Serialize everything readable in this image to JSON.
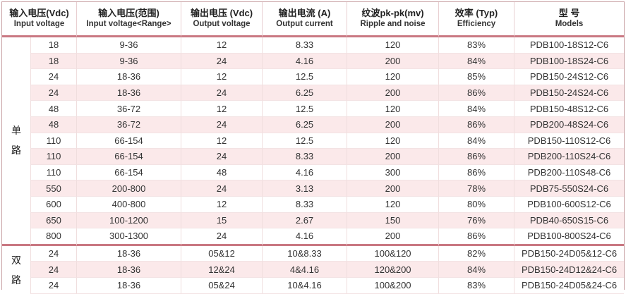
{
  "headers": [
    {
      "cn": "输入电压(Vdc)",
      "en": "Input voltage"
    },
    {
      "cn": "输入电压(范围)",
      "en": "Input voltage<Range>"
    },
    {
      "cn": "输出电压 (Vdc)",
      "en": "Output voltage"
    },
    {
      "cn": "输出电流 (A)",
      "en": "Output current"
    },
    {
      "cn": "纹波pk-pk(mv)",
      "en": "Ripple and noise"
    },
    {
      "cn": "效率 (Typ)",
      "en": "Efficiency"
    },
    {
      "cn": "型    号",
      "en": "Models"
    }
  ],
  "groups": [
    {
      "label_chars": [
        "单",
        "路"
      ],
      "rows": [
        [
          "18",
          "9-36",
          "12",
          "8.33",
          "120",
          "83%",
          "PDB100-18S12-C6"
        ],
        [
          "18",
          "9-36",
          "24",
          "4.16",
          "200",
          "84%",
          "PDB100-18S24-C6"
        ],
        [
          "24",
          "18-36",
          "12",
          "12.5",
          "120",
          "85%",
          "PDB150-24S12-C6"
        ],
        [
          "24",
          "18-36",
          "24",
          "6.25",
          "200",
          "86%",
          "PDB150-24S24-C6"
        ],
        [
          "48",
          "36-72",
          "12",
          "12.5",
          "120",
          "84%",
          "PDB150-48S12-C6"
        ],
        [
          "48",
          "36-72",
          "24",
          "6.25",
          "200",
          "86%",
          "PDB200-48S24-C6"
        ],
        [
          "110",
          "66-154",
          "12",
          "12.5",
          "120",
          "84%",
          "PDB150-110S12-C6"
        ],
        [
          "110",
          "66-154",
          "24",
          "8.33",
          "200",
          "86%",
          "PDB200-110S24-C6"
        ],
        [
          "110",
          "66-154",
          "48",
          "4.16",
          "300",
          "86%",
          "PDB200-110S48-C6"
        ],
        [
          "550",
          "200-800",
          "24",
          "3.13",
          "200",
          "78%",
          "PDB75-550S24-C6"
        ],
        [
          "600",
          "400-800",
          "12",
          "8.33",
          "120",
          "80%",
          "PDB100-600S12-C6"
        ],
        [
          "650",
          "100-1200",
          "15",
          "2.67",
          "150",
          "76%",
          "PDB40-650S15-C6"
        ],
        [
          "800",
          "300-1300",
          "24",
          "4.16",
          "200",
          "86%",
          "PDB100-800S24-C6"
        ]
      ]
    },
    {
      "label_chars": [
        "双",
        "路"
      ],
      "rows": [
        [
          "24",
          "18-36",
          "05&12",
          "10&8.33",
          "100&120",
          "82%",
          "PDB150-24D05&12-C6"
        ],
        [
          "24",
          "18-36",
          "12&24",
          "4&4.16",
          "120&200",
          "84%",
          "PDB150-24D12&24-C6"
        ],
        [
          "24",
          "18-36",
          "05&24",
          "10&4.16",
          "100&200",
          "83%",
          "PDB150-24D05&24-C6"
        ]
      ]
    }
  ]
}
